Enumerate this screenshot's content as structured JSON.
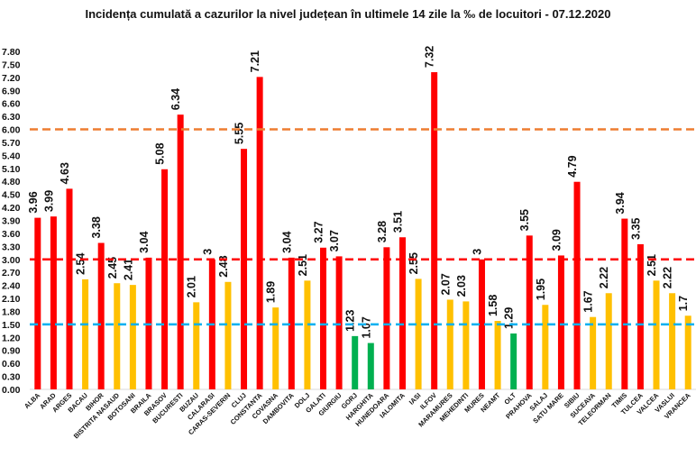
{
  "chart_data": {
    "type": "bar",
    "title": "Incidența cumulată a cazurilor la nivel județean în ultimele 14 zile la ‰ de locuitori - 07.12.2020",
    "ylim": [
      0,
      7.8
    ],
    "yticks": [
      "0.00",
      "0.30",
      "0.60",
      "0.90",
      "1.20",
      "1.50",
      "1.80",
      "2.10",
      "2.40",
      "2.70",
      "3.00",
      "3.30",
      "3.60",
      "3.90",
      "4.20",
      "4.50",
      "4.80",
      "5.10",
      "5.40",
      "5.70",
      "6.00",
      "6.30",
      "6.60",
      "6.90",
      "7.20",
      "7.50",
      "7.80"
    ],
    "grid": false,
    "categories": [
      "ALBA",
      "ARAD",
      "ARGES",
      "BACAU",
      "BIHOR",
      "BISTRITA NASAUD",
      "BOTOSANI",
      "BRAILA",
      "BRASOV",
      "BUCURESTI",
      "BUZAU",
      "CALARASI",
      "CARAS-SEVERIN",
      "CLUJ",
      "CONSTANTA",
      "COVASNA",
      "DAMBOVITA",
      "DOLJ",
      "GALATI",
      "GIURGIU",
      "GORJ",
      "HARGHITA",
      "HUNEDOARA",
      "IALOMITA",
      "IASI",
      "ILFOV",
      "MARAMURES",
      "MEHEDINTI",
      "MURES",
      "NEAMT",
      "OLT",
      "PRAHOVA",
      "SALAJ",
      "SATU MARE",
      "SIBIU",
      "SUCEAVA",
      "TELEORMAN",
      "TIMIS",
      "TULCEA",
      "VALCEA",
      "VASLUI",
      "VRANCEA"
    ],
    "values": [
      3.96,
      3.99,
      4.63,
      2.54,
      3.38,
      2.45,
      2.41,
      3.04,
      5.08,
      6.34,
      2.01,
      3,
      2.48,
      5.55,
      7.21,
      1.89,
      3.04,
      2.51,
      3.27,
      3.07,
      1.23,
      1.07,
      3.28,
      3.51,
      2.55,
      7.32,
      2.07,
      2.03,
      3,
      1.58,
      1.29,
      3.55,
      1.95,
      3.09,
      4.79,
      1.67,
      2.22,
      3.94,
      3.35,
      2.51,
      2.22,
      1.7
    ],
    "labels": [
      "3.96",
      "3.99",
      "4.63",
      "2.54",
      "3.38",
      "2.45",
      "2.41",
      "3.04",
      "5.08",
      "6.34",
      "2.01",
      "3",
      "2.48",
      "5.55",
      "7.21",
      "1.89",
      "3.04",
      "2.51",
      "3.27",
      "3.07",
      "1.23",
      "1.07",
      "3.28",
      "3.51",
      "2.55",
      "7.32",
      "2.07",
      "2.03",
      "3",
      "1.58",
      "1.29",
      "3.55",
      "1.95",
      "3.09",
      "4.79",
      "1.67",
      "2.22",
      "3.94",
      "3.35",
      "2.51",
      "2.22",
      "1.7"
    ],
    "colors": {
      "red": "#ff0000",
      "yellow": "#ffc000",
      "green": "#00b050"
    },
    "bar_colors": [
      "red",
      "red",
      "red",
      "yellow",
      "red",
      "yellow",
      "yellow",
      "red",
      "red",
      "red",
      "yellow",
      "red",
      "yellow",
      "red",
      "red",
      "yellow",
      "red",
      "yellow",
      "red",
      "red",
      "green",
      "green",
      "red",
      "red",
      "yellow",
      "red",
      "yellow",
      "yellow",
      "red",
      "yellow",
      "green",
      "red",
      "yellow",
      "red",
      "red",
      "yellow",
      "yellow",
      "red",
      "red",
      "yellow",
      "yellow",
      "yellow"
    ],
    "reference_lines": [
      {
        "value": 6.0,
        "color": "#ed7d31",
        "style": "dashed"
      },
      {
        "value": 3.0,
        "color": "#ff0000",
        "style": "dashed"
      },
      {
        "value": 1.5,
        "color": "#00b0f0",
        "style": "dashed"
      }
    ]
  }
}
